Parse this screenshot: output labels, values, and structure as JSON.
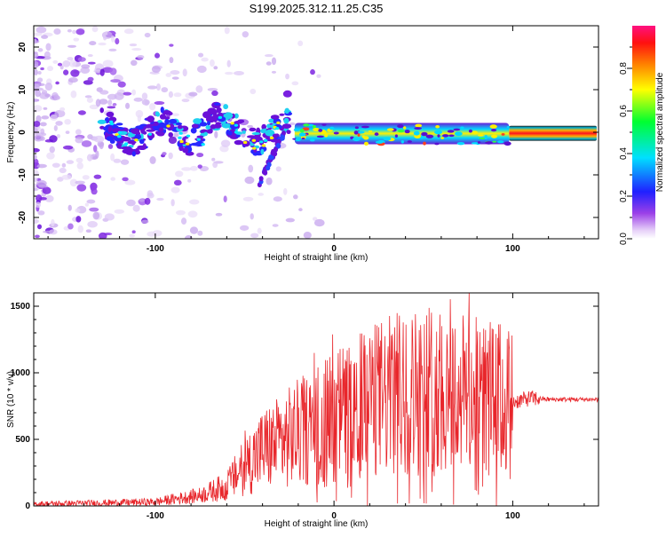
{
  "page_title": "S199.2025.312.11.25.C35",
  "chart_data": [
    {
      "type": "heatmap",
      "title": "S199.2025.312.11.25.C35",
      "xlabel": "Height of straight line (km)",
      "ylabel": "Frequency (Hz)",
      "xlim": [
        -168,
        148
      ],
      "ylim": [
        -25,
        25
      ],
      "x_ticks": [
        -100,
        0,
        100
      ],
      "y_ticks": [
        -20,
        -10,
        0,
        10,
        20
      ],
      "colorbar": {
        "label": "Normalized spectral amplitude",
        "range": [
          0,
          1
        ],
        "ticks": [
          "0.0",
          "0.2",
          "0.4",
          "0.6",
          "0.8"
        ],
        "colors": [
          "#ffffff",
          "#d8b8f0",
          "#8a2be2",
          "#0000ff",
          "#00ffff",
          "#00ff00",
          "#ffff00",
          "#ff8000",
          "#ff0000",
          "#ff1080"
        ]
      },
      "description_points": [
        {
          "x": -30,
          "y": 0,
          "value": 0.3
        },
        {
          "x": 0,
          "y": 0,
          "value": 0.55
        },
        {
          "x": 50,
          "y": 0,
          "value": 0.5
        },
        {
          "x": 120,
          "y": 0,
          "value": 0.95
        }
      ]
    },
    {
      "type": "line",
      "xlabel": "Height of straight line (km)",
      "ylabel": "SNR (10 * v/v)",
      "xlim": [
        -168,
        148
      ],
      "ylim": [
        0,
        1600
      ],
      "x_ticks": [
        -100,
        0,
        100
      ],
      "y_ticks": [
        0,
        500,
        1000,
        1500
      ],
      "series_color": "#e8262b",
      "series": [
        {
          "name": "SNR",
          "x": [
            -168,
            -140,
            -100,
            -75,
            -60,
            -50,
            -40,
            -30,
            -20,
            -10,
            0,
            10,
            20,
            30,
            40,
            50,
            60,
            70,
            80,
            90,
            100,
            110,
            120,
            148
          ],
          "y": [
            15,
            20,
            30,
            80,
            150,
            300,
            420,
            480,
            550,
            600,
            680,
            720,
            780,
            820,
            850,
            870,
            880,
            850,
            820,
            800,
            780,
            810,
            800,
            800
          ]
        }
      ]
    }
  ]
}
